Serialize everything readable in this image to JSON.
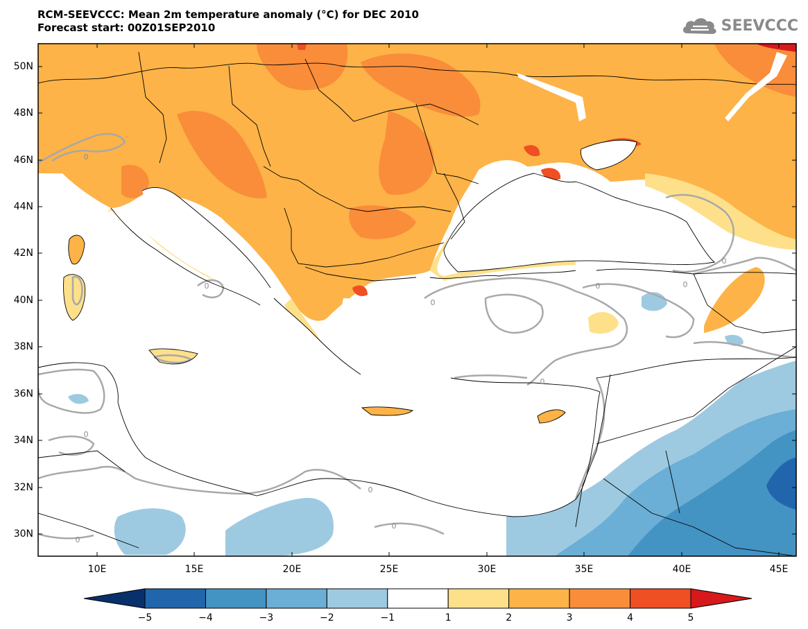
{
  "header": {
    "title_line1": "RCM-SEEVCCC: Mean 2m temperature anomaly (°C) for DEC 2010",
    "title_line2": "Forecast start: 00Z01SEP2010"
  },
  "logo": {
    "text": "SEEVCCC",
    "icon": "cloud-icon"
  },
  "map": {
    "lat_labels": [
      "50N",
      "48N",
      "46N",
      "44N",
      "42N",
      "40N",
      "38N",
      "36N",
      "34N",
      "32N",
      "30N"
    ],
    "lon_labels": [
      "10E",
      "15E",
      "20E",
      "25E",
      "30E",
      "35E",
      "40E",
      "45E"
    ],
    "contour_label": "0"
  },
  "colorbar": {
    "labels": [
      "−5",
      "−4",
      "−3",
      "−2",
      "−1",
      "1",
      "2",
      "3",
      "4",
      "5"
    ],
    "colors": [
      "#08306b",
      "#2166ac",
      "#4393c3",
      "#6baed6",
      "#9ecae1",
      "#ffffff",
      "#fee08b",
      "#fdb347",
      "#f98d3a",
      "#f04e23",
      "#d7191c"
    ]
  }
}
